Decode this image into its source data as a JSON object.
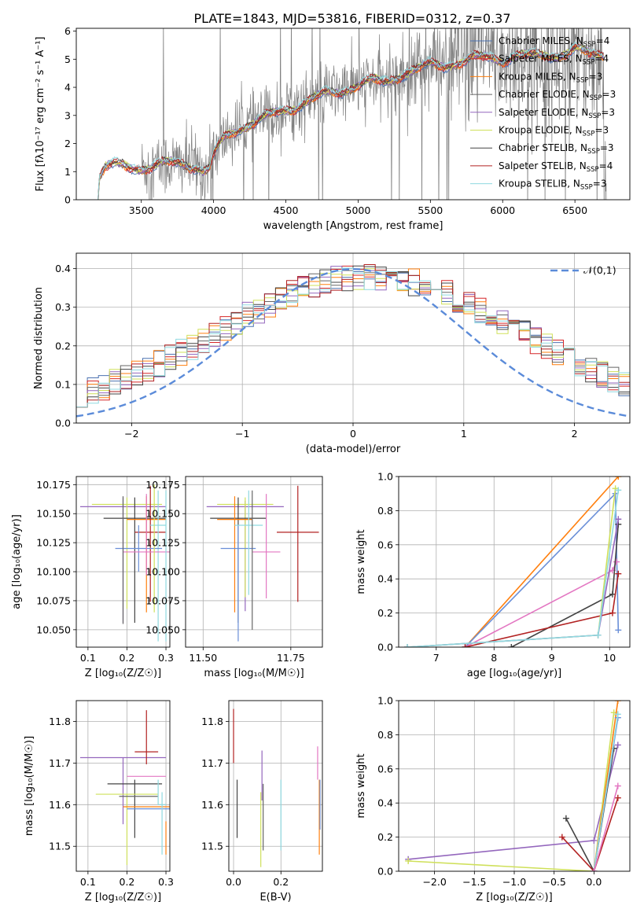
{
  "figure": {
    "title": "PLATE=1843, MJD=53816, FIBERID=0312, z=0.37"
  },
  "colors": {
    "Chabrier MILES": "#4c72b0",
    "Salpeter MILES": "#d62728",
    "Kroupa MILES": "#ff7f0e",
    "Chabrier ELODIE": "#666666",
    "Salpeter ELODIE": "#9467bd",
    "Kroupa ELODIE": "#cfe05a",
    "Chabrier STELIB": "#444444",
    "Salpeter STELIB": "#b22222",
    "Kroupa STELIB": "#8fd9e0",
    "gaussian": "#5b8bd9",
    "data": "#808080",
    "pink": "#e377c2",
    "blue": "#6a8fd8"
  },
  "chart_data": [
    {
      "id": "spectrum",
      "type": "line",
      "xlabel": "wavelength [Angstrom, rest frame]",
      "ylabel": "Flux [fλ10⁻¹⁷ erg cm⁻² s⁻¹ A⁻¹]",
      "xlim": [
        3050,
        6880
      ],
      "ylim": [
        0,
        6.1
      ],
      "xticks": [
        3500,
        4000,
        4500,
        5000,
        5500,
        6000,
        6500
      ],
      "yticks": [
        0,
        1,
        2,
        3,
        4,
        5,
        6
      ],
      "grid": false,
      "legend": "top-right",
      "legend_entries": [
        {
          "label": "Chabrier MILES, N",
          "sub": "SSP",
          "tail": "=4",
          "color": "#4c72b0"
        },
        {
          "label": "Salpeter MILES, N",
          "sub": "SSP",
          "tail": "=4",
          "color": "#d62728"
        },
        {
          "label": "Kroupa MILES, N",
          "sub": "SSP",
          "tail": "=3",
          "color": "#ff7f0e"
        },
        {
          "label": "Chabrier ELODIE, N",
          "sub": "SSP",
          "tail": "=3",
          "color": "#666666"
        },
        {
          "label": "Salpeter ELODIE, N",
          "sub": "SSP",
          "tail": "=3",
          "color": "#9467bd"
        },
        {
          "label": "Kroupa ELODIE, N",
          "sub": "SSP",
          "tail": "=3",
          "color": "#cfe05a"
        },
        {
          "label": "Chabrier STELIB, N",
          "sub": "SSP",
          "tail": "=3",
          "color": "#444444"
        },
        {
          "label": "Salpeter STELIB, N",
          "sub": "SSP",
          "tail": "=4",
          "color": "#b22222"
        },
        {
          "label": "Kroupa STELIB, N",
          "sub": "SSP",
          "tail": "=3",
          "color": "#8fd9e0"
        }
      ],
      "continuum": [
        [
          3200,
          0.0
        ],
        [
          3210,
          0.8
        ],
        [
          3250,
          1.15
        ],
        [
          3300,
          1.2
        ],
        [
          3400,
          1.2
        ],
        [
          3500,
          1.15
        ],
        [
          3600,
          1.2
        ],
        [
          3700,
          1.3
        ],
        [
          3800,
          1.3
        ],
        [
          3880,
          1.2
        ],
        [
          3930,
          1.0
        ],
        [
          3970,
          1.1
        ],
        [
          4000,
          1.6
        ],
        [
          4050,
          2.0
        ],
        [
          4100,
          2.3
        ],
        [
          4200,
          2.6
        ],
        [
          4300,
          2.8
        ],
        [
          4400,
          3.0
        ],
        [
          4500,
          3.2
        ],
        [
          4600,
          3.4
        ],
        [
          4700,
          3.6
        ],
        [
          4800,
          3.8
        ],
        [
          4900,
          3.9
        ],
        [
          5000,
          4.1
        ],
        [
          5100,
          4.2
        ],
        [
          5200,
          4.2
        ],
        [
          5300,
          4.5
        ],
        [
          5400,
          4.6
        ],
        [
          5500,
          4.8
        ],
        [
          5600,
          4.8
        ],
        [
          5700,
          4.9
        ],
        [
          5800,
          5.0
        ],
        [
          5900,
          5.1
        ],
        [
          6000,
          5.0
        ],
        [
          6100,
          5.1
        ],
        [
          6200,
          5.1
        ],
        [
          6300,
          5.2
        ],
        [
          6400,
          5.15
        ],
        [
          6500,
          5.3
        ],
        [
          6600,
          5.2
        ],
        [
          6700,
          5.2
        ]
      ]
    },
    {
      "id": "residuals",
      "type": "histogram",
      "xlabel": "(data-model)/error",
      "ylabel": "Normed distribution",
      "xlim": [
        -2.5,
        2.5
      ],
      "ylim": [
        0,
        0.44
      ],
      "xticks": [
        -2,
        -1,
        0,
        1,
        2
      ],
      "yticks": [
        0.0,
        0.1,
        0.2,
        0.3,
        0.4
      ],
      "grid": true,
      "legend": "top-right",
      "gaussian_label": "𝒩(0,1)",
      "bin_width": 0.1
    },
    {
      "id": "age-vs-Z",
      "type": "errorbar",
      "xlabel": "Z [log₁₀(Z/Z☉)]",
      "ylabel": "age  [log₁₀(age/yr)]",
      "xlim": [
        0.07,
        0.31
      ],
      "ylim": [
        10.035,
        10.182
      ],
      "xticks": [
        0.1,
        0.2,
        0.3
      ],
      "yticks": [
        10.05,
        10.075,
        10.1,
        10.125,
        10.15,
        10.175
      ],
      "grid": true,
      "points": [
        {
          "x": 0.19,
          "y": 10.156,
          "xerr": 0.11,
          "yerr": [
            0.1,
            0.008
          ],
          "color": "#9467bd"
        },
        {
          "x": 0.2,
          "y": 10.158,
          "xerr": 0.09,
          "yerr": [
            0.09,
            0.006
          ],
          "color": "#cfe05a"
        },
        {
          "x": 0.22,
          "y": 10.146,
          "xerr": 0.08,
          "yerr": [
            0.09,
            0.018
          ],
          "color": "#444444"
        },
        {
          "x": 0.25,
          "y": 10.145,
          "xerr": 0.05,
          "yerr": [
            0.08,
            0.02
          ],
          "color": "#ff7f0e"
        },
        {
          "x": 0.26,
          "y": 10.134,
          "xerr": 0.04,
          "yerr": [
            0.06,
            0.04
          ],
          "color": "#b22222"
        },
        {
          "x": 0.28,
          "y": 10.14,
          "xerr": 0.02,
          "yerr": [
            0.1,
            0.03
          ],
          "color": "#8fd9e0"
        },
        {
          "x": 0.23,
          "y": 10.12,
          "xerr": 0.06,
          "yerr": [
            0.02,
            0.02
          ],
          "color": "#6a8fd8"
        },
        {
          "x": 0.25,
          "y": 10.117,
          "xerr": 0.06,
          "yerr": [
            0.02,
            0.05
          ],
          "color": "#e377c2"
        },
        {
          "x": 0.19,
          "y": 10.14,
          "xerr": 0.0,
          "yerr": [
            0.085,
            0.025
          ],
          "color": "#666666"
        },
        {
          "x": 0.27,
          "y": 10.13,
          "xerr": 0.0,
          "yerr": [
            0.065,
            0.045
          ],
          "color": "#cfe05a"
        },
        {
          "x": 0.3,
          "y": 10.11,
          "xerr": 0.0,
          "yerr": [
            0.07,
            0.06
          ],
          "color": "#8fd9e0"
        }
      ]
    },
    {
      "id": "age-vs-mass",
      "type": "errorbar",
      "xlabel": "mass [log₁₀(M/M☉)]",
      "ylabel": "",
      "xlim": [
        11.45,
        11.84
      ],
      "ylim": [
        10.035,
        10.182
      ],
      "xticks": [
        11.5,
        11.75
      ],
      "yticks": [
        10.05,
        10.075,
        10.1,
        10.125,
        10.15,
        10.175
      ],
      "grid": true,
      "points": [
        {
          "x": 11.62,
          "y": 10.156,
          "xerr": 0.11,
          "yerr": [
            0.09,
            0.005
          ],
          "color": "#9467bd"
        },
        {
          "x": 11.62,
          "y": 10.158,
          "xerr": 0.08,
          "yerr": [
            0.08,
            0.006
          ],
          "color": "#cfe05a"
        },
        {
          "x": 11.6,
          "y": 10.146,
          "xerr": 0.08,
          "yerr": [
            0.09,
            0.018
          ],
          "color": "#444444"
        },
        {
          "x": 11.59,
          "y": 10.145,
          "xerr": 0.05,
          "yerr": [
            0.08,
            0.02
          ],
          "color": "#ff7f0e"
        },
        {
          "x": 11.77,
          "y": 10.134,
          "xerr": 0.06,
          "yerr": [
            0.06,
            0.04
          ],
          "color": "#b22222"
        },
        {
          "x": 11.6,
          "y": 10.12,
          "xerr": 0.05,
          "yerr": [
            0.08,
            0.02
          ],
          "color": "#6a8fd8"
        },
        {
          "x": 11.68,
          "y": 10.117,
          "xerr": 0.04,
          "yerr": [
            0.04,
            0.05
          ],
          "color": "#e377c2"
        },
        {
          "x": 11.63,
          "y": 10.14,
          "xerr": 0.04,
          "yerr": [
            0.06,
            0.03
          ],
          "color": "#8fd9e0"
        },
        {
          "x": 11.64,
          "y": 10.12,
          "xerr": 0.0,
          "yerr": [
            0.07,
            0.05
          ],
          "color": "#666666"
        }
      ]
    },
    {
      "id": "massweight-vs-age",
      "type": "line",
      "xlabel": "age  [log₁₀(age/yr)]",
      "ylabel": "mass weight",
      "xlim": [
        6.35,
        10.35
      ],
      "ylim": [
        0,
        1
      ],
      "xticks": [
        7,
        8,
        9,
        10
      ],
      "yticks": [
        0.0,
        0.2,
        0.4,
        0.6,
        0.8,
        1.0
      ],
      "grid": true,
      "series": [
        {
          "color": "#ff7f0e",
          "points": [
            [
              7.5,
              0.0
            ],
            [
              10.15,
              1.0
            ]
          ]
        },
        {
          "color": "#6a8fd8",
          "points": [
            [
              7.5,
              0.0
            ],
            [
              10.1,
              0.9
            ],
            [
              10.15,
              0.1
            ]
          ]
        },
        {
          "color": "#e377c2",
          "points": [
            [
              7.5,
              0.0
            ],
            [
              10.05,
              0.45
            ],
            [
              10.12,
              0.5
            ]
          ]
        },
        {
          "color": "#444444",
          "points": [
            [
              8.3,
              0.0
            ],
            [
              10.05,
              0.31
            ],
            [
              10.15,
              0.72
            ]
          ]
        },
        {
          "color": "#b22222",
          "points": [
            [
              7.5,
              0.0
            ],
            [
              10.05,
              0.2
            ],
            [
              10.15,
              0.43
            ]
          ]
        },
        {
          "color": "#cfe05a",
          "points": [
            [
              6.5,
              0.0
            ],
            [
              9.8,
              0.07
            ],
            [
              10.1,
              0.93
            ]
          ]
        },
        {
          "color": "#9467bd",
          "points": [
            [
              6.5,
              0.0
            ],
            [
              9.8,
              0.07
            ],
            [
              10.15,
              0.75
            ]
          ]
        },
        {
          "color": "#8fd9e0",
          "points": [
            [
              6.5,
              0.0
            ],
            [
              9.8,
              0.07
            ],
            [
              10.15,
              0.92
            ]
          ]
        }
      ]
    },
    {
      "id": "mass-vs-Z",
      "type": "errorbar",
      "xlabel": "Z [log₁₀(Z/Z☉)]",
      "ylabel": "mass [log₁₀(M/M☉)]",
      "xlim": [
        0.07,
        0.31
      ],
      "ylim": [
        11.44,
        11.85
      ],
      "xticks": [
        0.1,
        0.2,
        0.3
      ],
      "yticks": [
        11.5,
        11.6,
        11.7,
        11.8
      ],
      "grid": true,
      "points": [
        {
          "x": 0.19,
          "y": 11.713,
          "xerr": 0.11,
          "yerr": [
            0.16,
            0.0
          ],
          "color": "#9467bd"
        },
        {
          "x": 0.25,
          "y": 11.727,
          "xerr": 0.03,
          "yerr": [
            0.03,
            0.1
          ],
          "color": "#b22222"
        },
        {
          "x": 0.25,
          "y": 11.668,
          "xerr": 0.05,
          "yerr": [
            0.0,
            0.0
          ],
          "color": "#e377c2"
        },
        {
          "x": 0.22,
          "y": 11.65,
          "xerr": 0.07,
          "yerr": [
            0.13,
            0.01
          ],
          "color": "#444444"
        },
        {
          "x": 0.2,
          "y": 11.625,
          "xerr": 0.08,
          "yerr": [
            0.17,
            0.0
          ],
          "color": "#cfe05a"
        },
        {
          "x": 0.23,
          "y": 11.62,
          "xerr": 0.05,
          "yerr": [
            0.0,
            0.0
          ],
          "color": "#666666"
        },
        {
          "x": 0.25,
          "y": 11.595,
          "xerr": 0.06,
          "yerr": [
            0.0,
            0.0
          ],
          "color": "#ff7f0e"
        },
        {
          "x": 0.26,
          "y": 11.59,
          "xerr": 0.06,
          "yerr": [
            0.0,
            0.0
          ],
          "color": "#6a8fd8"
        },
        {
          "x": 0.29,
          "y": 11.6,
          "xerr": 0.01,
          "yerr": [
            0.12,
            0.03
          ],
          "color": "#8fd9e0"
        },
        {
          "x": 0.3,
          "y": 11.53,
          "xerr": 0.0,
          "yerr": [
            0.05,
            0.03
          ],
          "color": "#ff7f0e"
        },
        {
          "x": 0.28,
          "y": 11.6,
          "xerr": 0.0,
          "yerr": [
            0.0,
            0.06
          ],
          "color": "#8fd9e0"
        }
      ]
    },
    {
      "id": "mass-vs-EBV",
      "type": "errorbar",
      "xlabel": "E(B-V)",
      "ylabel": "",
      "xlim": [
        -0.02,
        0.375
      ],
      "ylim": [
        11.44,
        11.85
      ],
      "xticks": [
        0.0,
        0.2
      ],
      "yticks": [
        11.5,
        11.6,
        11.7,
        11.8
      ],
      "grid": true,
      "points": [
        {
          "x": 0.0,
          "y": 11.76,
          "yerr": [
            0.06,
            0.07
          ],
          "color": "#b22222"
        },
        {
          "x": 0.015,
          "y": 11.59,
          "yerr": [
            0.07,
            0.07
          ],
          "color": "#444444"
        },
        {
          "x": 0.12,
          "y": 11.67,
          "yerr": [
            0.06,
            0.06
          ],
          "color": "#9467bd"
        },
        {
          "x": 0.115,
          "y": 11.55,
          "yerr": [
            0.1,
            0.08
          ],
          "color": "#cfe05a"
        },
        {
          "x": 0.125,
          "y": 11.57,
          "yerr": [
            0.08,
            0.08
          ],
          "color": "#666666"
        },
        {
          "x": 0.2,
          "y": 11.57,
          "yerr": [
            0.08,
            0.09
          ],
          "color": "#8fd9e0"
        },
        {
          "x": 0.355,
          "y": 11.66,
          "yerr": [
            0.0,
            0.08
          ],
          "color": "#e377c2"
        },
        {
          "x": 0.362,
          "y": 11.56,
          "yerr": [
            0.08,
            0.1
          ],
          "color": "#ff7f0e"
        },
        {
          "x": 0.365,
          "y": 11.6,
          "yerr": [
            0.06,
            0.06
          ],
          "color": "#6a8fd8"
        }
      ]
    },
    {
      "id": "massweight-vs-Z",
      "type": "line",
      "xlabel": "Z [log₁₀(Z/Z☉)]",
      "ylabel": "mass weight",
      "xlim": [
        -2.45,
        0.45
      ],
      "ylim": [
        0,
        1
      ],
      "xticks": [
        -2.0,
        -1.5,
        -1.0,
        -0.5,
        0.0
      ],
      "yticks": [
        0.0,
        0.2,
        0.4,
        0.6,
        0.8,
        1.0
      ],
      "grid": true,
      "series": [
        {
          "color": "#9467bd",
          "points": [
            [
              -2.33,
              0.07
            ],
            [
              0.0,
              0.18
            ],
            [
              0.3,
              0.74
            ]
          ]
        },
        {
          "color": "#cfe05a",
          "points": [
            [
              -2.33,
              0.06
            ],
            [
              0.0,
              0.0
            ],
            [
              0.25,
              0.93
            ]
          ]
        },
        {
          "color": "#444444",
          "points": [
            [
              -0.35,
              0.31
            ],
            [
              0.0,
              0.0
            ],
            [
              0.25,
              0.72
            ]
          ]
        },
        {
          "color": "#b22222",
          "points": [
            [
              -0.4,
              0.2
            ],
            [
              0.0,
              0.0
            ],
            [
              0.3,
              0.43
            ]
          ]
        },
        {
          "color": "#ff7f0e",
          "points": [
            [
              0.0,
              0.0
            ],
            [
              0.3,
              1.0
            ]
          ]
        },
        {
          "color": "#6a8fd8",
          "points": [
            [
              0.0,
              0.0
            ],
            [
              0.3,
              0.9
            ]
          ]
        },
        {
          "color": "#8fd9e0",
          "points": [
            [
              0.0,
              0.0
            ],
            [
              0.3,
              0.92
            ]
          ]
        },
        {
          "color": "#e377c2",
          "points": [
            [
              0.0,
              0.0
            ],
            [
              0.3,
              0.5
            ]
          ]
        }
      ]
    }
  ]
}
